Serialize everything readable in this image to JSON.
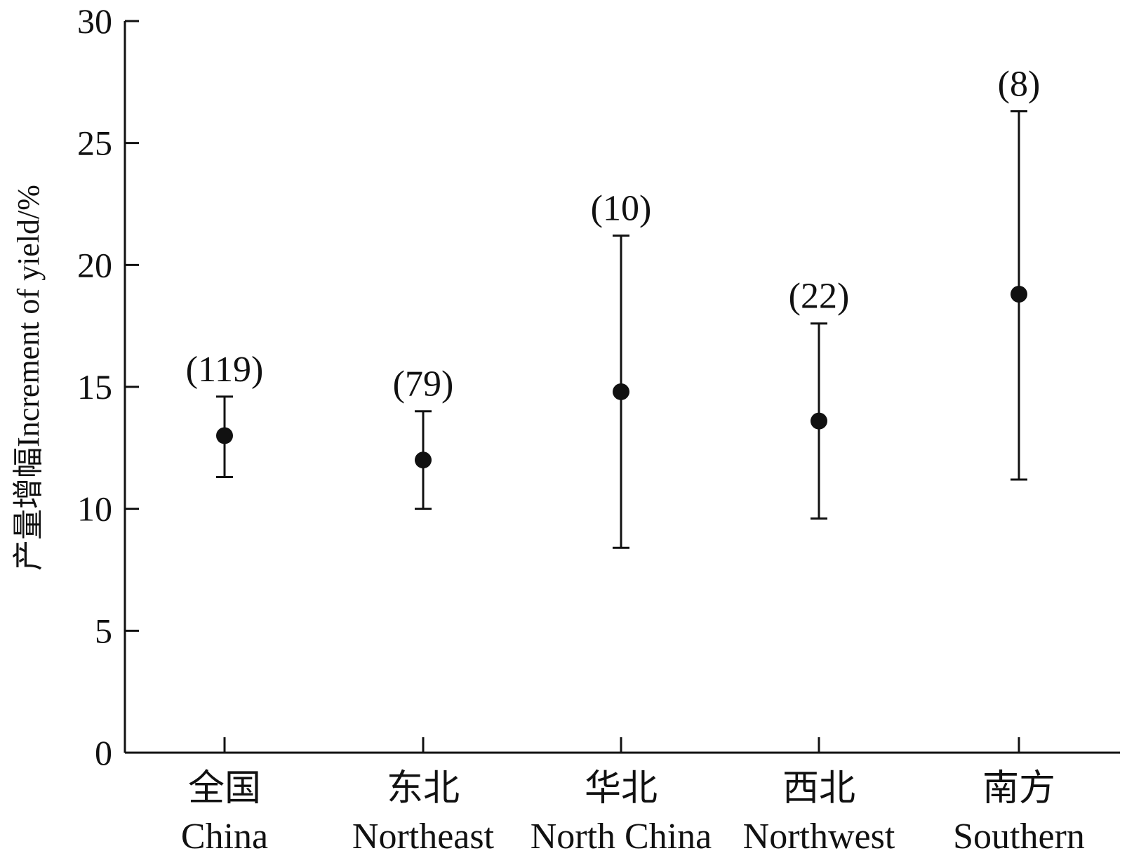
{
  "chart_data": {
    "type": "scatter",
    "ylabel": "产量增幅Increment of yield/%",
    "ylim": [
      0,
      30
    ],
    "yticks": [
      0,
      5,
      10,
      15,
      20,
      25,
      30
    ],
    "grid": false,
    "categories": [
      {
        "cn": "全国",
        "en": "China"
      },
      {
        "cn": "东北",
        "en": "Northeast"
      },
      {
        "cn": "华北",
        "en": "North China"
      },
      {
        "cn": "西北",
        "en": "Northwest"
      },
      {
        "cn": "南方",
        "en": "Southern"
      }
    ],
    "means": [
      13.0,
      12.0,
      14.8,
      13.6,
      18.8
    ],
    "lower": [
      11.3,
      10.0,
      8.4,
      9.6,
      11.2
    ],
    "upper": [
      14.6,
      14.0,
      21.2,
      17.6,
      26.3
    ],
    "n_labels": [
      "(119)",
      "(79)",
      "(10)",
      "(22)",
      "(8)"
    ],
    "color": "#111111"
  }
}
